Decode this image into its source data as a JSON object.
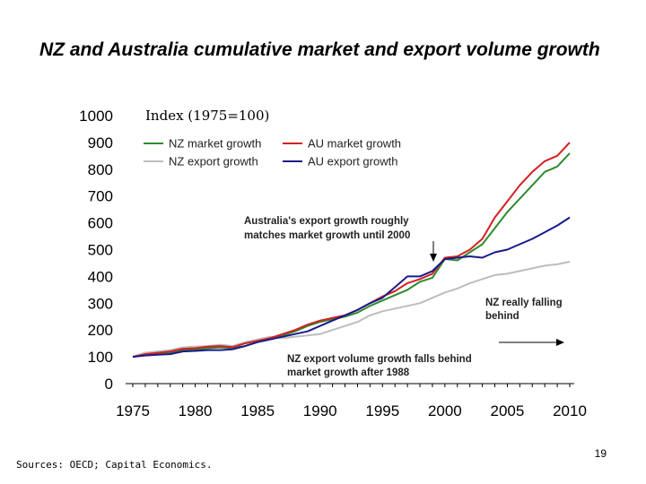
{
  "slide": {
    "title": "NZ and Australia cumulative market and export volume growth",
    "sources": "Sources:  OECD; Capital Economics.",
    "page_number": "19"
  },
  "chart_data": {
    "type": "line",
    "axis_label": "Index (1975=100)",
    "xlim": [
      1975,
      2010
    ],
    "ylim": [
      0,
      1000
    ],
    "x_ticks": [
      1975,
      1980,
      1985,
      1990,
      1995,
      2000,
      2005,
      2010
    ],
    "y_ticks": [
      0,
      100,
      200,
      300,
      400,
      500,
      600,
      700,
      800,
      900,
      1000
    ],
    "legend_position": "top",
    "grid": false,
    "x": [
      1975,
      1976,
      1977,
      1978,
      1979,
      1980,
      1981,
      1982,
      1983,
      1984,
      1985,
      1986,
      1987,
      1988,
      1989,
      1990,
      1991,
      1992,
      1993,
      1994,
      1995,
      1996,
      1997,
      1998,
      1999,
      2000,
      2001,
      2002,
      2003,
      2004,
      2005,
      2006,
      2007,
      2008,
      2009,
      2010
    ],
    "series": [
      {
        "name": "NZ market growth",
        "color": "#2e8b2e",
        "values": [
          100,
          108,
          110,
          115,
          125,
          127,
          132,
          135,
          133,
          140,
          155,
          165,
          180,
          195,
          215,
          230,
          240,
          250,
          265,
          290,
          310,
          330,
          350,
          380,
          395,
          465,
          460,
          490,
          520,
          580,
          640,
          690,
          740,
          790,
          810,
          860
        ]
      },
      {
        "name": "AU market growth",
        "color": "#d42020",
        "values": [
          100,
          110,
          115,
          120,
          130,
          132,
          138,
          140,
          136,
          150,
          160,
          170,
          185,
          200,
          220,
          235,
          245,
          255,
          275,
          300,
          325,
          345,
          375,
          390,
          410,
          470,
          475,
          500,
          540,
          620,
          680,
          740,
          790,
          830,
          850,
          900
        ]
      },
      {
        "name": "NZ export growth",
        "color": "#bdbdbd",
        "values": [
          100,
          115,
          120,
          125,
          135,
          138,
          140,
          145,
          140,
          155,
          165,
          175,
          170,
          175,
          180,
          185,
          200,
          215,
          230,
          255,
          270,
          280,
          290,
          300,
          320,
          340,
          355,
          375,
          390,
          405,
          410,
          420,
          430,
          440,
          445,
          455
        ]
      },
      {
        "name": "AU export growth",
        "color": "#1a1a8c",
        "values": [
          100,
          105,
          108,
          110,
          120,
          122,
          125,
          125,
          128,
          140,
          155,
          165,
          175,
          185,
          195,
          215,
          235,
          255,
          275,
          300,
          320,
          360,
          400,
          400,
          420,
          465,
          470,
          475,
          470,
          490,
          500,
          520,
          540,
          565,
          590,
          620
        ]
      }
    ],
    "annotations": [
      {
        "text": [
          "Australia's export growth roughly",
          "matches market growth until 2000"
        ]
      },
      {
        "text": [
          "NZ really falling",
          "behind"
        ]
      },
      {
        "text": [
          "NZ export volume growth falls behind",
          "market growth after 1988"
        ]
      }
    ]
  }
}
